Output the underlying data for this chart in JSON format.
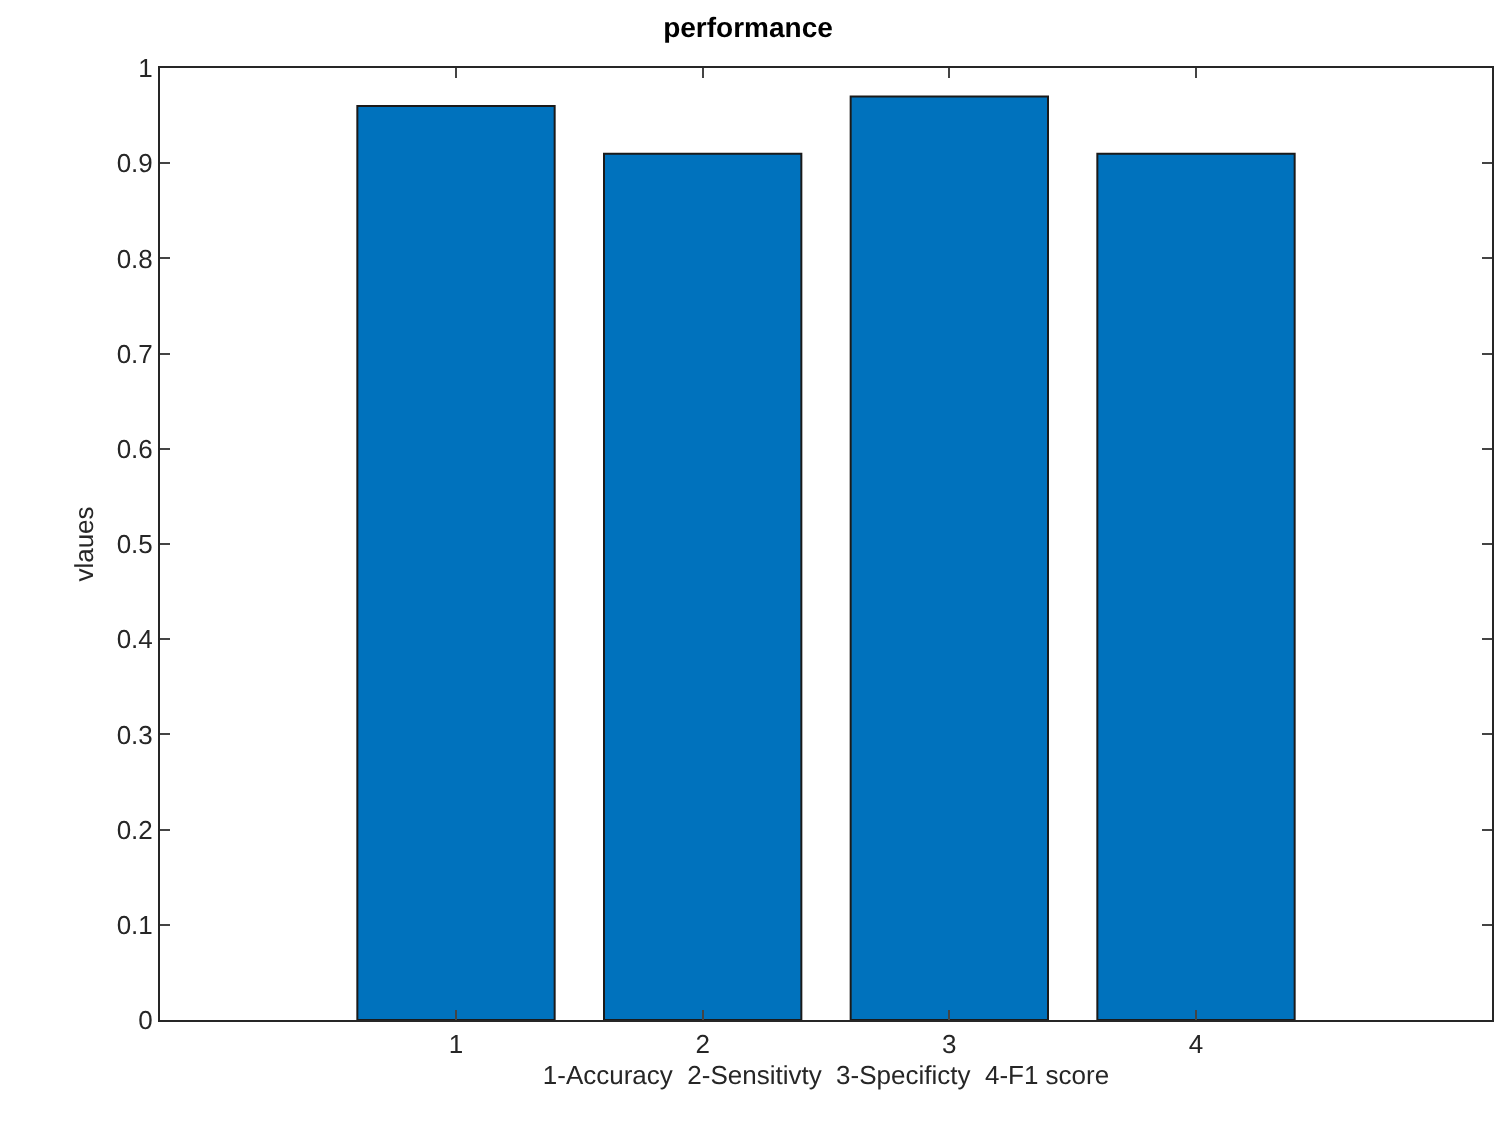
{
  "chart_data": {
    "type": "bar",
    "title": "performance",
    "xlabel": "1-Accuracy  2-Sensitivty  3-Specificty  4-F1 score",
    "ylabel": "vlaues",
    "x": [
      1,
      2,
      3,
      4
    ],
    "values": [
      0.96,
      0.91,
      0.97,
      0.91
    ],
    "color": "#0072bd",
    "xlim": [
      -0.2,
      5.2
    ],
    "xticks": [
      1,
      2,
      3,
      4
    ],
    "ylim": [
      0,
      1
    ],
    "yticks": [
      0,
      0.1,
      0.2,
      0.3,
      0.4,
      0.5,
      0.6,
      0.7,
      0.8,
      0.9,
      1
    ],
    "grid": false
  }
}
